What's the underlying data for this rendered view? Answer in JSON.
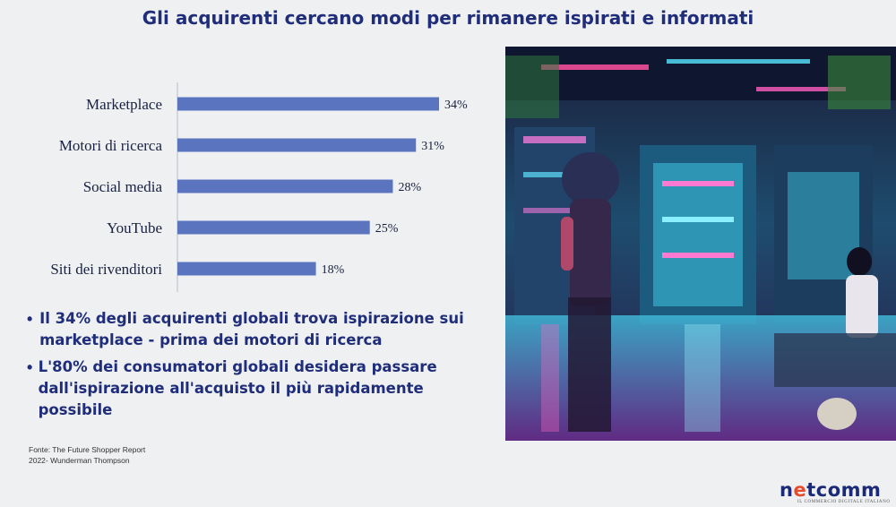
{
  "title": "Gli acquirenti cercano modi per rimanere ispirati e informati",
  "chart_data": {
    "type": "bar",
    "orientation": "horizontal",
    "categories": [
      "Marketplace",
      "Motori di ricerca",
      "Social media",
      "YouTube",
      "Siti dei rivenditori"
    ],
    "values": [
      34,
      31,
      28,
      25,
      18
    ],
    "value_suffix": "%",
    "xlim": [
      0,
      40
    ],
    "bar_color": "#5b74c0",
    "grid": false
  },
  "bullets": [
    "Il 34% degli acquirenti globali trova ispirazione sui marketplace - prima dei motori di ricerca",
    "L'80% dei consumatori globali desidera passare dall'ispirazione all'acquisto il più rapidamente possibile"
  ],
  "bullet_marker": "•",
  "source": {
    "line1": "Fonte: The Future Shopper Report",
    "line2": "2022- Wunderman Thompson"
  },
  "logo": {
    "part1": "n",
    "accent": "e",
    "part2": "tcomm",
    "tagline": "IL COMMERCIO DIGITALE ITALIANO",
    "accent_color": "#e84a2a",
    "brand_color": "#1a2a78"
  },
  "colors": {
    "title": "#1f2d7a",
    "background": "#eef0f2"
  }
}
